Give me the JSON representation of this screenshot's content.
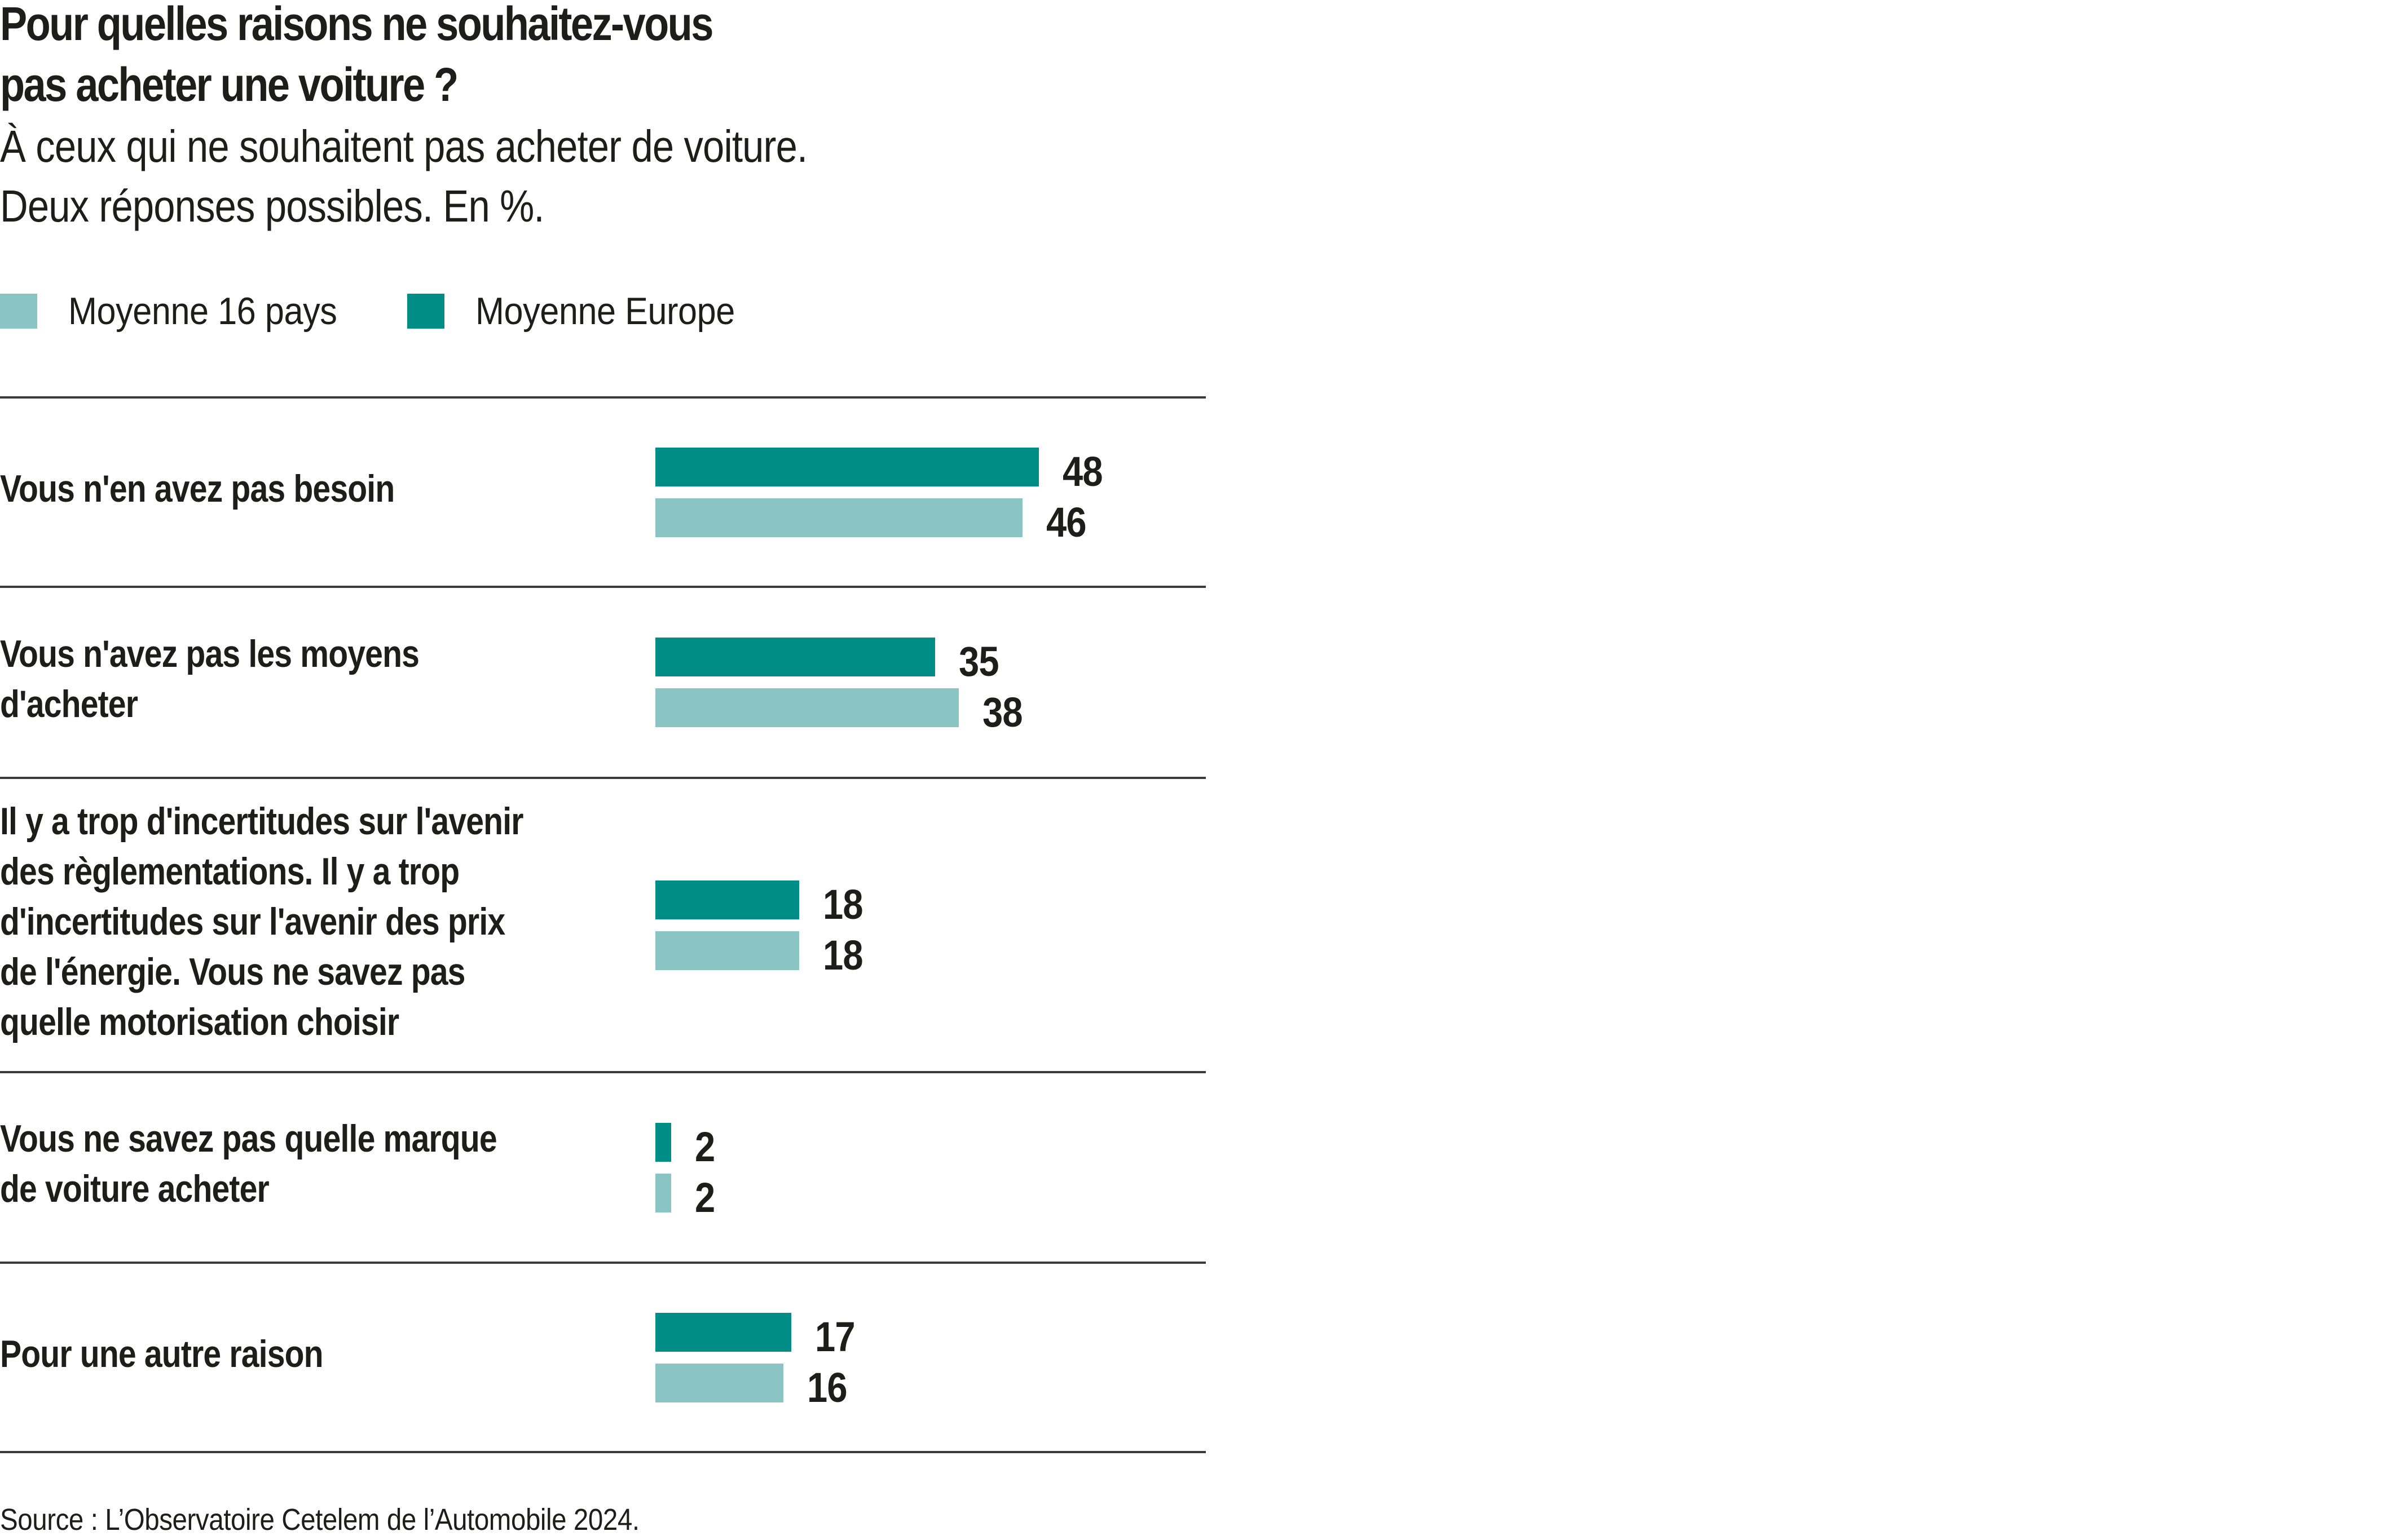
{
  "chart_data": {
    "type": "bar",
    "orientation": "horizontal",
    "title": "Pour quelles raisons ne souhaitez-vous pas acheter une voiture ?",
    "title_lines": [
      "Pour quelles raisons ne souhaitez-vous",
      "pas acheter une voiture ?"
    ],
    "subtitle_lines": [
      "À ceux qui ne souhaitent pas acheter de voiture.",
      "Deux réponses possibles. En %."
    ],
    "xlabel": "",
    "ylabel": "",
    "unit": "%",
    "xlim": [
      0,
      48
    ],
    "grid": false,
    "legend_position": "top-left",
    "legend": [
      {
        "name": "Moyenne 16 pays",
        "color": "#8AC5C3"
      },
      {
        "name": "Moyenne Europe",
        "color": "#008D86"
      }
    ],
    "categories": [
      [
        "Vous n'en avez pas besoin"
      ],
      [
        "Vous n'avez pas les moyens",
        "d'acheter"
      ],
      [
        "Il y a trop d'incertitudes sur l'avenir",
        "des règlementations. Il y a trop",
        "d'incertitudes sur l'avenir des prix",
        "de l'énergie. Vous ne savez pas",
        "quelle motorisation choisir"
      ],
      [
        "Vous ne savez pas quelle marque",
        "de voiture acheter"
      ],
      [
        "Pour une autre raison"
      ]
    ],
    "series": [
      {
        "name": "Moyenne Europe",
        "color": "#008D86",
        "values": [
          48,
          35,
          18,
          2,
          17
        ]
      },
      {
        "name": "Moyenne 16 pays",
        "color": "#8AC5C3",
        "values": [
          46,
          38,
          18,
          2,
          16
        ]
      }
    ],
    "source": "Source : L’Observatoire Cetelem de l’Automobile 2024."
  }
}
